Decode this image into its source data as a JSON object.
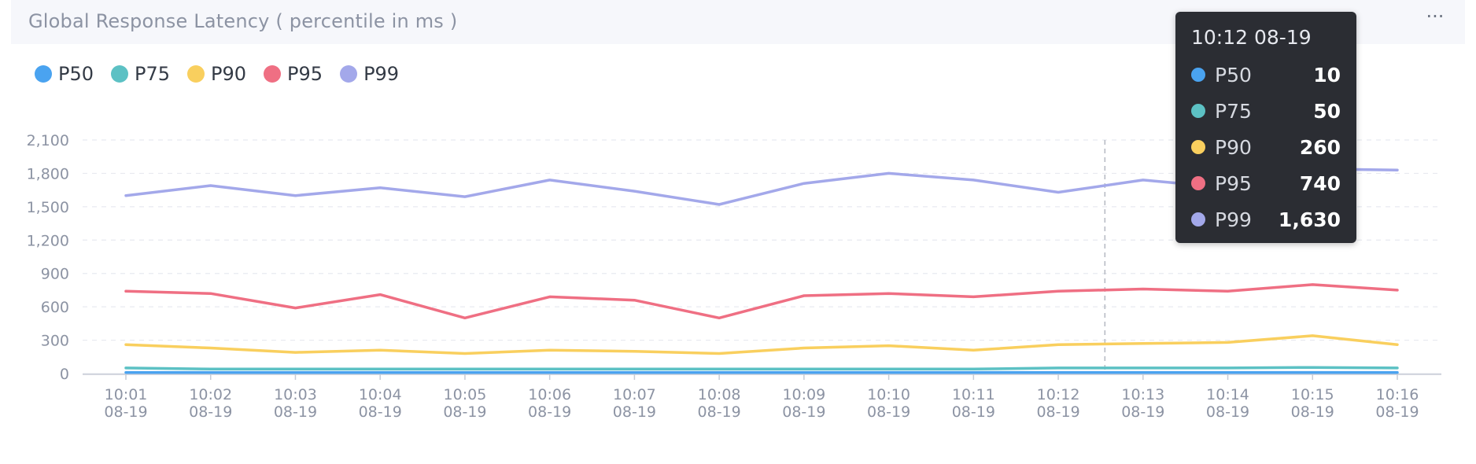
{
  "panel": {
    "title": "Global Response Latency ( percentile in ms )",
    "more_label": "···"
  },
  "colors": {
    "P50": "#4aa3f0",
    "P75": "#5cc1c4",
    "P90": "#f9cf5e",
    "P95": "#ef6f83",
    "P99": "#a3a8ea"
  },
  "legend": [
    {
      "name": "P50",
      "color": "#4aa3f0"
    },
    {
      "name": "P75",
      "color": "#5cc1c4"
    },
    {
      "name": "P90",
      "color": "#f9cf5e"
    },
    {
      "name": "P95",
      "color": "#ef6f83"
    },
    {
      "name": "P99",
      "color": "#a3a8ea"
    }
  ],
  "tooltip": {
    "title": "10:12 08-19",
    "rows": [
      {
        "name": "P50",
        "value": "10",
        "color": "#4aa3f0"
      },
      {
        "name": "P75",
        "value": "50",
        "color": "#5cc1c4"
      },
      {
        "name": "P90",
        "value": "260",
        "color": "#f9cf5e"
      },
      {
        "name": "P95",
        "value": "740",
        "color": "#ef6f83"
      },
      {
        "name": "P99",
        "value": "1,630",
        "color": "#a3a8ea"
      }
    ]
  },
  "chart_data": {
    "type": "line",
    "title": "Global Response Latency ( percentile in ms )",
    "x_time": [
      "10:01",
      "10:02",
      "10:03",
      "10:04",
      "10:05",
      "10:06",
      "10:07",
      "10:08",
      "10:09",
      "10:10",
      "10:11",
      "10:12",
      "10:13",
      "10:14",
      "10:15",
      "10:16"
    ],
    "x_date": [
      "08-19",
      "08-19",
      "08-19",
      "08-19",
      "08-19",
      "08-19",
      "08-19",
      "08-19",
      "08-19",
      "08-19",
      "08-19",
      "08-19",
      "08-19",
      "08-19",
      "08-19",
      "08-19"
    ],
    "y_ticks": [
      "0",
      "300",
      "600",
      "900",
      "1,200",
      "1,500",
      "1,800",
      "2,100"
    ],
    "ylim": [
      0,
      2100
    ],
    "grid": true,
    "legend_position": "top-left",
    "crosshair_at": "10:12",
    "series": [
      {
        "name": "P50",
        "values": [
          10,
          10,
          10,
          10,
          10,
          10,
          10,
          10,
          10,
          10,
          10,
          10,
          10,
          10,
          10,
          10
        ]
      },
      {
        "name": "P75",
        "values": [
          50,
          40,
          40,
          40,
          40,
          40,
          40,
          40,
          40,
          40,
          40,
          50,
          50,
          50,
          55,
          50
        ]
      },
      {
        "name": "P90",
        "values": [
          260,
          230,
          190,
          210,
          180,
          210,
          200,
          180,
          230,
          250,
          210,
          260,
          270,
          280,
          340,
          260
        ]
      },
      {
        "name": "P95",
        "values": [
          740,
          720,
          590,
          710,
          500,
          690,
          660,
          500,
          700,
          720,
          690,
          740,
          760,
          740,
          800,
          750
        ]
      },
      {
        "name": "P99",
        "values": [
          1600,
          1690,
          1600,
          1670,
          1590,
          1740,
          1640,
          1520,
          1710,
          1800,
          1740,
          1630,
          1740,
          1670,
          1840,
          1830
        ]
      }
    ]
  }
}
